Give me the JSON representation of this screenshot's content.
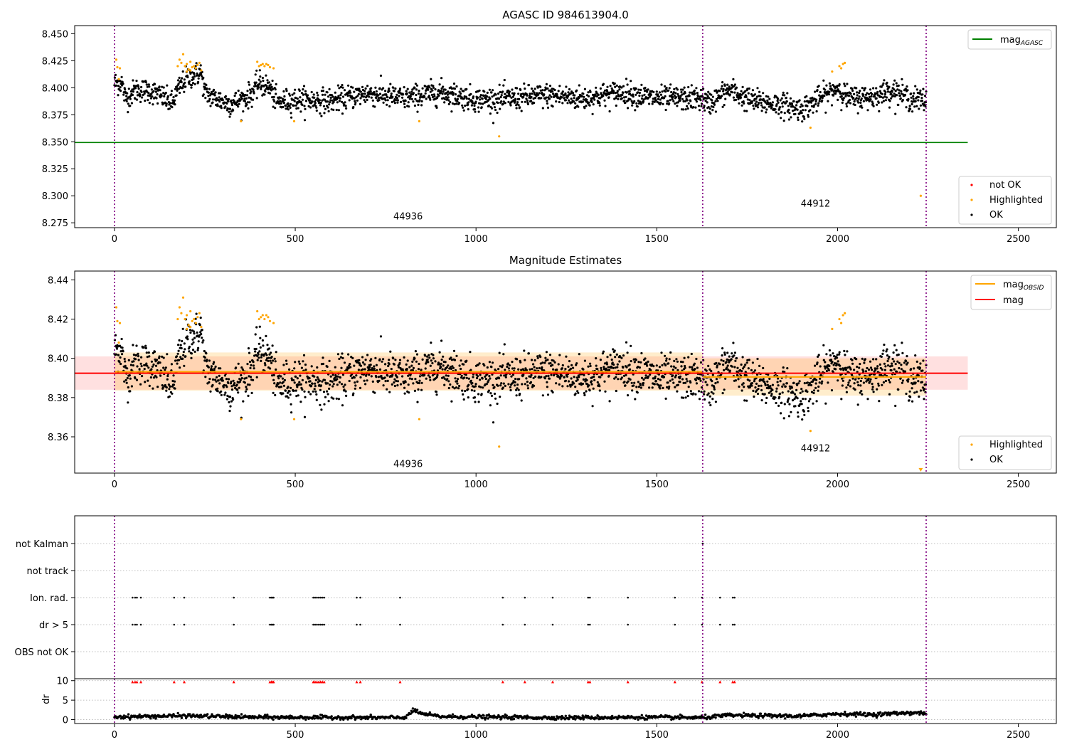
{
  "chart_data": [
    {
      "type": "scatter",
      "title": "AGASC ID 984613904.0",
      "xlim": [
        -110,
        2605
      ],
      "ylim": [
        8.2705,
        8.4575
      ],
      "xticks": [
        0,
        500,
        1000,
        1500,
        2000,
        2500
      ],
      "yticks": [
        8.275,
        8.3,
        8.325,
        8.35,
        8.375,
        8.4,
        8.425,
        8.45
      ],
      "legend_upper": [
        {
          "label": "mag",
          "sub": "AGASC",
          "color": "#008000"
        }
      ],
      "legend_lower": [
        {
          "label": "not OK",
          "color": "#ff0000"
        },
        {
          "label": "Highlighted",
          "color": "#ffa500"
        },
        {
          "label": "OK",
          "color": "#000000"
        }
      ],
      "agasc_mag": 8.3493,
      "agasc_xrange": [
        -110,
        2360
      ],
      "obsid_boundaries": [
        0,
        1627,
        2245
      ],
      "obsid_labels": [
        {
          "text": "44936",
          "x": 812,
          "y": 8.278
        },
        {
          "text": "44912",
          "x": 1939,
          "y": 8.29
        }
      ],
      "ok_profile": [
        [
          0,
          8.404
        ],
        [
          20,
          8.405
        ],
        [
          30,
          8.39
        ],
        [
          60,
          8.398
        ],
        [
          100,
          8.397
        ],
        [
          130,
          8.392
        ],
        [
          160,
          8.385
        ],
        [
          175,
          8.398
        ],
        [
          200,
          8.409
        ],
        [
          240,
          8.414
        ],
        [
          250,
          8.395
        ],
        [
          280,
          8.39
        ],
        [
          320,
          8.385
        ],
        [
          360,
          8.39
        ],
        [
          380,
          8.395
        ],
        [
          400,
          8.404
        ],
        [
          430,
          8.4
        ],
        [
          450,
          8.386
        ],
        [
          500,
          8.389
        ],
        [
          600,
          8.388
        ],
        [
          700,
          8.395
        ],
        [
          800,
          8.39
        ],
        [
          900,
          8.396
        ],
        [
          1000,
          8.389
        ],
        [
          1100,
          8.39
        ],
        [
          1200,
          8.393
        ],
        [
          1300,
          8.39
        ],
        [
          1400,
          8.396
        ],
        [
          1500,
          8.39
        ],
        [
          1600,
          8.39
        ],
        [
          1627,
          8.39
        ],
        [
          1640,
          8.385
        ],
        [
          1700,
          8.398
        ],
        [
          1760,
          8.388
        ],
        [
          1850,
          8.384
        ],
        [
          1900,
          8.38
        ],
        [
          1950,
          8.39
        ],
        [
          2000,
          8.4
        ],
        [
          2030,
          8.39
        ],
        [
          2100,
          8.392
        ],
        [
          2150,
          8.398
        ],
        [
          2200,
          8.39
        ],
        [
          2245,
          8.388
        ]
      ],
      "ok_spread": 0.0055,
      "ok_count": 2240,
      "highlighted": [
        [
          5,
          8.426
        ],
        [
          8,
          8.419
        ],
        [
          15,
          8.418
        ],
        [
          12,
          8.408
        ],
        [
          175,
          8.42
        ],
        [
          180,
          8.426
        ],
        [
          185,
          8.423
        ],
        [
          190,
          8.431
        ],
        [
          195,
          8.42
        ],
        [
          200,
          8.422
        ],
        [
          205,
          8.417
        ],
        [
          210,
          8.424
        ],
        [
          215,
          8.419
        ],
        [
          220,
          8.42
        ],
        [
          225,
          8.418
        ],
        [
          230,
          8.421
        ],
        [
          235,
          8.423
        ],
        [
          240,
          8.416
        ],
        [
          200,
          8.415
        ],
        [
          210,
          8.416
        ],
        [
          395,
          8.424
        ],
        [
          400,
          8.42
        ],
        [
          405,
          8.421
        ],
        [
          410,
          8.422
        ],
        [
          415,
          8.42
        ],
        [
          420,
          8.422
        ],
        [
          425,
          8.421
        ],
        [
          430,
          8.419
        ],
        [
          440,
          8.418
        ],
        [
          350,
          8.369
        ],
        [
          497,
          8.369
        ],
        [
          843,
          8.369
        ],
        [
          1064,
          8.355
        ],
        [
          1925,
          8.363
        ],
        [
          1985,
          8.415
        ],
        [
          2005,
          8.42
        ],
        [
          2010,
          8.418
        ],
        [
          2015,
          8.422
        ],
        [
          2020,
          8.423
        ],
        [
          2230,
          8.3
        ]
      ]
    },
    {
      "type": "scatter",
      "title": "Magnitude Estimates",
      "xlim": [
        -110,
        2605
      ],
      "ylim": [
        8.3415,
        8.4445
      ],
      "xticks": [
        0,
        500,
        1000,
        1500,
        2000,
        2500
      ],
      "yticks": [
        8.36,
        8.38,
        8.4,
        8.42,
        8.44
      ],
      "legend_upper": [
        {
          "label": "mag",
          "sub": "OBSID",
          "color": "#ffa500"
        },
        {
          "label": "mag",
          "sub": "",
          "color": "#ff0000"
        }
      ],
      "legend_lower": [
        {
          "label": "Highlighted",
          "color": "#ffa500"
        },
        {
          "label": "OK",
          "color": "#000000"
        }
      ],
      "mag": 8.3924,
      "mag_band": [
        8.384,
        8.401
      ],
      "mag_xrange": [
        -110,
        2360
      ],
      "obsid_mags": [
        {
          "x": [
            0,
            1627
          ],
          "mag": 8.3932,
          "band": [
            8.3835,
            8.403
          ]
        },
        {
          "x": [
            1627,
            2245
          ],
          "mag": 8.3905,
          "band": [
            8.381,
            8.4
          ]
        }
      ],
      "obsid_labels": [
        {
          "text": "44936",
          "x": 812,
          "y": 8.3445
        },
        {
          "text": "44912",
          "x": 1939,
          "y": 8.3525
        }
      ],
      "marker_below": {
        "x": 2230,
        "y": 8.343
      }
    },
    {
      "type": "scatter",
      "title": "",
      "xlim": [
        -110,
        2605
      ],
      "xticks": [
        0,
        500,
        1000,
        1500,
        2000,
        2500
      ],
      "flag_rows": [
        "not Kalman",
        "not track",
        "Ion. rad.",
        "dr > 5",
        "OBS not OK"
      ],
      "flag_points": {
        "not Kalman": [
          1627
        ],
        "not track": [],
        "Ion. rad.": [
          50,
          57,
          62,
          73,
          165,
          193,
          330,
          430,
          434,
          437,
          440,
          550,
          555,
          560,
          565,
          570,
          575,
          580,
          670,
          680,
          790,
          1074,
          1135,
          1212,
          1310,
          1315,
          1420,
          1550,
          1625,
          1675,
          1710,
          1715
        ],
        "dr > 5": [
          50,
          57,
          62,
          73,
          165,
          193,
          330,
          430,
          434,
          437,
          440,
          550,
          555,
          560,
          565,
          570,
          575,
          580,
          670,
          680,
          790,
          1074,
          1135,
          1212,
          1310,
          1315,
          1420,
          1550,
          1625,
          1675,
          1710,
          1715
        ],
        "OBS not OK": []
      },
      "dr_yticks": [
        0,
        5,
        10
      ],
      "dr_ylim": [
        -1,
        10.5
      ],
      "dr_ylabel": "dr",
      "dr_red_markers": [
        50,
        57,
        62,
        73,
        165,
        193,
        330,
        430,
        434,
        437,
        440,
        550,
        555,
        560,
        565,
        570,
        575,
        580,
        670,
        680,
        790,
        1074,
        1135,
        1212,
        1310,
        1315,
        1420,
        1550,
        1625,
        1675,
        1710,
        1715
      ],
      "dr_red_value": 9.7,
      "dr_profile": [
        [
          0,
          0.7
        ],
        [
          200,
          1.0
        ],
        [
          400,
          0.6
        ],
        [
          800,
          0.5
        ],
        [
          830,
          2.4
        ],
        [
          850,
          1.5
        ],
        [
          900,
          0.8
        ],
        [
          1200,
          0.5
        ],
        [
          1500,
          0.6
        ],
        [
          1627,
          0.5
        ],
        [
          1700,
          1.1
        ],
        [
          1900,
          0.9
        ],
        [
          2000,
          1.5
        ],
        [
          2100,
          1.3
        ],
        [
          2200,
          1.8
        ],
        [
          2245,
          1.6
        ]
      ]
    }
  ]
}
